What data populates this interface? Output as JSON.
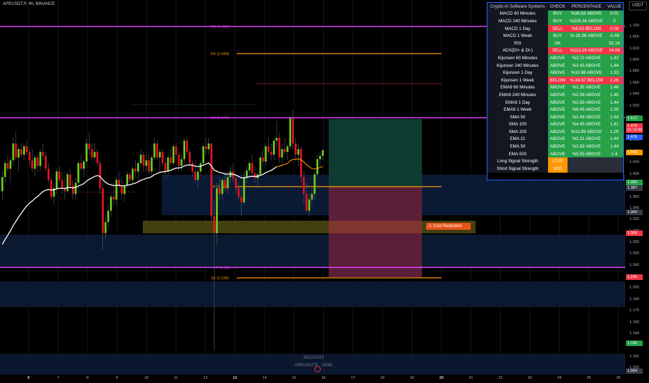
{
  "header": {
    "symbol": "APEUSDT.P, 4h, BINANCE",
    "currency": "USDT"
  },
  "price_axis": {
    "ticks": [
      "1.700",
      "1.660",
      "1.620",
      "1.600",
      "1.580",
      "1.560",
      "1.540",
      "1.520",
      "1.500",
      "1.480",
      "1.460",
      "1.440",
      "1.420",
      "1.400",
      "1.380",
      "1.360",
      "1.340",
      "1.320",
      "1.300",
      "1.280",
      "1.260",
      "1.240",
      "1.220",
      "1.205",
      "1.190",
      "1.175",
      "1.160",
      "1.144",
      "1.130",
      "1.116",
      "1.102"
    ],
    "labels": [
      {
        "text": "1.512",
        "color": "#26a049"
      },
      {
        "text": "1.478",
        "color": "#f23645"
      },
      {
        "text": "01:12:49",
        "color": "#f23645"
      },
      {
        "text": "1.476",
        "color": "#2962ff"
      },
      {
        "text": "1.448",
        "color": "#ff9800"
      },
      {
        "text": "1.393",
        "color": "#26a049"
      },
      {
        "text": "1.387",
        "color": "#363a45"
      },
      {
        "text": "1.340",
        "color": "#363a45"
      },
      {
        "text": "1.306",
        "color": "#f23645"
      },
      {
        "text": "1.235",
        "color": "#f23645"
      },
      {
        "text": "1.136",
        "color": "#26a049"
      },
      {
        "text": "1.094",
        "color": "#363a45"
      }
    ]
  },
  "time_axis": {
    "ticks": [
      {
        "label": "6",
        "bold": true
      },
      {
        "label": "7",
        "bold": false
      },
      {
        "label": "8",
        "bold": false
      },
      {
        "label": "9",
        "bold": false
      },
      {
        "label": "10",
        "bold": false
      },
      {
        "label": "11",
        "bold": false
      },
      {
        "label": "12",
        "bold": false
      },
      {
        "label": "13",
        "bold": true
      },
      {
        "label": "14",
        "bold": false
      },
      {
        "label": "15",
        "bold": false
      },
      {
        "label": "16",
        "bold": false
      },
      {
        "label": "17",
        "bold": false
      },
      {
        "label": "18",
        "bold": false
      },
      {
        "label": "19",
        "bold": false
      },
      {
        "label": "20",
        "bold": true
      },
      {
        "label": "21",
        "bold": false
      },
      {
        "label": "22",
        "bold": false
      },
      {
        "label": "23",
        "bold": false
      },
      {
        "label": "24",
        "bold": false
      },
      {
        "label": "25",
        "bold": false
      },
      {
        "label": "26",
        "bold": false
      }
    ]
  },
  "pivot_levels": [
    {
      "label": "R1 (1.639)",
      "color": "#ff9800"
    },
    {
      "label": "P (1.385)",
      "color": "#ff9800"
    },
    {
      "label": "S1 (1.234)",
      "color": "#ff9800"
    },
    {
      "label": "R1 (1.639)",
      "color": "#e040fb"
    },
    {
      "label": "S1 (1.521)",
      "color": "#e040fb"
    },
    {
      "label": "P (1.31)",
      "color": "#e040fb"
    }
  ],
  "cost_reduction_label": "Cost Reduction",
  "bottom_info": {
    "date": "16/11/2023",
    "symbol": "APEUSDT.P · 240M"
  },
  "panel": {
    "headers": [
      "Crypto AI Software Systems",
      "CHECK",
      "PERCENTAGE",
      "VALUE"
    ],
    "rows": [
      {
        "name": "MACD 60 Minutes",
        "check": "BUY",
        "pct": "%36.63 ABOVE",
        "value": "0.01",
        "color": "g"
      },
      {
        "name": "MACD 240 Minutes",
        "check": "BUY",
        "pct": "%226.36 ABOVE",
        "value": "0",
        "color": "g"
      },
      {
        "name": "MACD 1 Day",
        "check": "SELL",
        "pct": "%8.53 BELOW",
        "value": "0.08",
        "color": "r"
      },
      {
        "name": "MACD 1 Week",
        "check": "BUY",
        "pct": "%-26.98 ABOVE",
        "value": "-0.49",
        "color": "g"
      },
      {
        "name": "RSI",
        "check": "OK",
        "pct": "-",
        "value": "55.18",
        "color": "g"
      },
      {
        "name": "ADX(DI+ & DI-)",
        "check": "SELL",
        "pct": "%113.39 ABOVE",
        "value": "14.06",
        "color": "r"
      },
      {
        "name": "Kijunsen 60 Minutes",
        "check": "ABOVE",
        "pct": "%3.72 ABOVE",
        "value": "1.42",
        "color": "g"
      },
      {
        "name": "Kijunsen 240 Minutes",
        "check": "ABOVE",
        "pct": "%2.43 ABOVE",
        "value": "1.44",
        "color": "g"
      },
      {
        "name": "Kijunsen 1 Day",
        "check": "ABOVE",
        "pct": "%10.98 ABOVE",
        "value": "1.33",
        "color": "g"
      },
      {
        "name": "Kijunsen 1 Week",
        "check": "BELOW",
        "pct": "%-34.57 BELOW",
        "value": "2.26",
        "color": "r"
      },
      {
        "name": "EMA9 60 Minutes",
        "check": "ABOVE",
        "pct": "%1.35 ABOVE",
        "value": "1.46",
        "color": "g"
      },
      {
        "name": "EMA9 240 Minutes",
        "check": "ABOVE",
        "pct": "%2.08 ABOVE",
        "value": "1.45",
        "color": "g"
      },
      {
        "name": "EMA9 1 Day",
        "check": "ABOVE",
        "pct": "%2.65 ABOVE",
        "value": "1.44",
        "color": "g"
      },
      {
        "name": "EMA9 1 Week",
        "check": "ABOVE",
        "pct": "%6.45 ABOVE",
        "value": "1.39",
        "color": "g"
      },
      {
        "name": "SMA 50",
        "check": "ABOVE",
        "pct": "%2.49 ABOVE",
        "value": "1.44",
        "color": "g"
      },
      {
        "name": "SMA 100",
        "check": "ABOVE",
        "pct": "%4.45 ABOVE",
        "value": "1.41",
        "color": "g"
      },
      {
        "name": "SMA 200",
        "check": "ABOVE",
        "pct": "%13.99 ABOVE",
        "value": "1.29",
        "color": "g"
      },
      {
        "name": "EMA 21",
        "check": "ABOVE",
        "pct": "%2.31 ABOVE",
        "value": "1.44",
        "color": "g"
      },
      {
        "name": "EMA 50",
        "check": "ABOVE",
        "pct": "%2.83 ABOVE",
        "value": "1.44",
        "color": "g"
      },
      {
        "name": "EMA 500",
        "check": "ABOVE",
        "pct": "%5.55 ABOVE",
        "value": "1.4",
        "color": "g"
      }
    ],
    "signals": [
      {
        "name": "Long Signal Strength",
        "value": "17/20"
      },
      {
        "name": "Short Signal Strength",
        "value": "3/20"
      }
    ]
  },
  "candles": [
    {
      "t": 0,
      "o": 1.405,
      "h": 1.44,
      "l": 1.39,
      "c": 1.43
    },
    {
      "t": 1,
      "o": 1.43,
      "h": 1.46,
      "l": 1.42,
      "c": 1.455
    },
    {
      "t": 2,
      "o": 1.455,
      "h": 1.47,
      "l": 1.44,
      "c": 1.445
    },
    {
      "t": 3,
      "o": 1.445,
      "h": 1.465,
      "l": 1.42,
      "c": 1.46
    },
    {
      "t": 4,
      "o": 1.46,
      "h": 1.5,
      "l": 1.45,
      "c": 1.49
    },
    {
      "t": 5,
      "o": 1.49,
      "h": 1.51,
      "l": 1.46,
      "c": 1.465
    },
    {
      "t": 6,
      "o": 1.465,
      "h": 1.485,
      "l": 1.44,
      "c": 1.48
    },
    {
      "t": 7,
      "o": 1.48,
      "h": 1.49,
      "l": 1.465,
      "c": 1.47
    },
    {
      "t": 8,
      "o": 1.47,
      "h": 1.49,
      "l": 1.46,
      "c": 1.485
    },
    {
      "t": 9,
      "o": 1.485,
      "h": 1.495,
      "l": 1.47,
      "c": 1.475
    },
    {
      "t": 10,
      "o": 1.475,
      "h": 1.48,
      "l": 1.45,
      "c": 1.46
    },
    {
      "t": 11,
      "o": 1.46,
      "h": 1.48,
      "l": 1.44,
      "c": 1.445
    },
    {
      "t": 12,
      "o": 1.445,
      "h": 1.47,
      "l": 1.43,
      "c": 1.465
    },
    {
      "t": 13,
      "o": 1.465,
      "h": 1.47,
      "l": 1.44,
      "c": 1.45
    },
    {
      "t": 14,
      "o": 1.45,
      "h": 1.48,
      "l": 1.44,
      "c": 1.475
    },
    {
      "t": 15,
      "o": 1.475,
      "h": 1.49,
      "l": 1.46,
      "c": 1.468
    },
    {
      "t": 16,
      "o": 1.468,
      "h": 1.475,
      "l": 1.44,
      "c": 1.445
    },
    {
      "t": 17,
      "o": 1.445,
      "h": 1.455,
      "l": 1.42,
      "c": 1.425
    },
    {
      "t": 18,
      "o": 1.425,
      "h": 1.43,
      "l": 1.39,
      "c": 1.395
    },
    {
      "t": 19,
      "o": 1.395,
      "h": 1.42,
      "l": 1.38,
      "c": 1.41
    },
    {
      "t": 20,
      "o": 1.41,
      "h": 1.445,
      "l": 1.4,
      "c": 1.44
    },
    {
      "t": 21,
      "o": 1.44,
      "h": 1.45,
      "l": 1.42,
      "c": 1.425
    },
    {
      "t": 22,
      "o": 1.425,
      "h": 1.44,
      "l": 1.4,
      "c": 1.41
    },
    {
      "t": 23,
      "o": 1.41,
      "h": 1.43,
      "l": 1.39,
      "c": 1.405
    },
    {
      "t": 24,
      "o": 1.405,
      "h": 1.44,
      "l": 1.4,
      "c": 1.435
    },
    {
      "t": 25,
      "o": 1.435,
      "h": 1.445,
      "l": 1.41,
      "c": 1.415
    },
    {
      "t": 26,
      "o": 1.415,
      "h": 1.425,
      "l": 1.39,
      "c": 1.4
    },
    {
      "t": 27,
      "o": 1.4,
      "h": 1.43,
      "l": 1.39,
      "c": 1.42
    },
    {
      "t": 28,
      "o": 1.42,
      "h": 1.46,
      "l": 1.41,
      "c": 1.455
    },
    {
      "t": 29,
      "o": 1.455,
      "h": 1.47,
      "l": 1.44,
      "c": 1.445
    },
    {
      "t": 30,
      "o": 1.445,
      "h": 1.46,
      "l": 1.43,
      "c": 1.458
    },
    {
      "t": 31,
      "o": 1.458,
      "h": 1.5,
      "l": 1.45,
      "c": 1.49
    },
    {
      "t": 32,
      "o": 1.49,
      "h": 1.51,
      "l": 1.47,
      "c": 1.48
    },
    {
      "t": 33,
      "o": 1.48,
      "h": 1.49,
      "l": 1.46,
      "c": 1.465
    },
    {
      "t": 34,
      "o": 1.465,
      "h": 1.49,
      "l": 1.455,
      "c": 1.475
    },
    {
      "t": 35,
      "o": 1.475,
      "h": 1.48,
      "l": 1.45,
      "c": 1.455
    },
    {
      "t": 36,
      "o": 1.455,
      "h": 1.46,
      "l": 1.4,
      "c": 1.41
    },
    {
      "t": 37,
      "o": 1.41,
      "h": 1.42,
      "l": 1.3,
      "c": 1.33
    },
    {
      "t": 38,
      "o": 1.33,
      "h": 1.36,
      "l": 1.32,
      "c": 1.35
    },
    {
      "t": 39,
      "o": 1.35,
      "h": 1.38,
      "l": 1.34,
      "c": 1.37
    },
    {
      "t": 40,
      "o": 1.37,
      "h": 1.4,
      "l": 1.36,
      "c": 1.395
    },
    {
      "t": 41,
      "o": 1.395,
      "h": 1.42,
      "l": 1.38,
      "c": 1.39
    },
    {
      "t": 42,
      "o": 1.39,
      "h": 1.43,
      "l": 1.38,
      "c": 1.425
    },
    {
      "t": 43,
      "o": 1.425,
      "h": 1.44,
      "l": 1.41,
      "c": 1.415
    },
    {
      "t": 44,
      "o": 1.415,
      "h": 1.43,
      "l": 1.39,
      "c": 1.4
    },
    {
      "t": 45,
      "o": 1.4,
      "h": 1.42,
      "l": 1.385,
      "c": 1.415
    },
    {
      "t": 46,
      "o": 1.415,
      "h": 1.44,
      "l": 1.41,
      "c": 1.435
    },
    {
      "t": 47,
      "o": 1.435,
      "h": 1.44,
      "l": 1.42,
      "c": 1.425
    },
    {
      "t": 48,
      "o": 1.425,
      "h": 1.45,
      "l": 1.42,
      "c": 1.445
    },
    {
      "t": 49,
      "o": 1.445,
      "h": 1.46,
      "l": 1.43,
      "c": 1.44
    },
    {
      "t": 50,
      "o": 1.44,
      "h": 1.46,
      "l": 1.42,
      "c": 1.455
    },
    {
      "t": 51,
      "o": 1.455,
      "h": 1.48,
      "l": 1.45,
      "c": 1.47
    },
    {
      "t": 52,
      "o": 1.47,
      "h": 1.475,
      "l": 1.44,
      "c": 1.45
    },
    {
      "t": 53,
      "o": 1.45,
      "h": 1.47,
      "l": 1.44,
      "c": 1.46
    },
    {
      "t": 54,
      "o": 1.46,
      "h": 1.47,
      "l": 1.435,
      "c": 1.44
    },
    {
      "t": 55,
      "o": 1.44,
      "h": 1.47,
      "l": 1.43,
      "c": 1.465
    },
    {
      "t": 56,
      "o": 1.465,
      "h": 1.5,
      "l": 1.46,
      "c": 1.49
    },
    {
      "t": 57,
      "o": 1.49,
      "h": 1.495,
      "l": 1.46,
      "c": 1.465
    },
    {
      "t": 58,
      "o": 1.465,
      "h": 1.48,
      "l": 1.44,
      "c": 1.475
    },
    {
      "t": 59,
      "o": 1.475,
      "h": 1.48,
      "l": 1.45,
      "c": 1.455
    },
    {
      "t": 60,
      "o": 1.455,
      "h": 1.465,
      "l": 1.43,
      "c": 1.44
    },
    {
      "t": 61,
      "o": 1.44,
      "h": 1.47,
      "l": 1.43,
      "c": 1.465
    },
    {
      "t": 62,
      "o": 1.465,
      "h": 1.48,
      "l": 1.45,
      "c": 1.455
    },
    {
      "t": 63,
      "o": 1.455,
      "h": 1.49,
      "l": 1.45,
      "c": 1.485
    },
    {
      "t": 64,
      "o": 1.485,
      "h": 1.49,
      "l": 1.46,
      "c": 1.47
    },
    {
      "t": 65,
      "o": 1.47,
      "h": 1.475,
      "l": 1.44,
      "c": 1.45
    },
    {
      "t": 66,
      "o": 1.45,
      "h": 1.47,
      "l": 1.44,
      "c": 1.462
    },
    {
      "t": 67,
      "o": 1.462,
      "h": 1.5,
      "l": 1.455,
      "c": 1.495
    },
    {
      "t": 68,
      "o": 1.495,
      "h": 1.5,
      "l": 1.47,
      "c": 1.475
    },
    {
      "t": 69,
      "o": 1.475,
      "h": 1.48,
      "l": 1.45,
      "c": 1.455
    },
    {
      "t": 70,
      "o": 1.455,
      "h": 1.46,
      "l": 1.43,
      "c": 1.44
    },
    {
      "t": 71,
      "o": 1.44,
      "h": 1.46,
      "l": 1.42,
      "c": 1.425
    },
    {
      "t": 72,
      "o": 1.425,
      "h": 1.45,
      "l": 1.41,
      "c": 1.44
    },
    {
      "t": 73,
      "o": 1.44,
      "h": 1.46,
      "l": 1.43,
      "c": 1.455
    },
    {
      "t": 74,
      "o": 1.455,
      "h": 1.49,
      "l": 1.45,
      "c": 1.485
    },
    {
      "t": 75,
      "o": 1.485,
      "h": 1.5,
      "l": 1.47,
      "c": 1.48
    },
    {
      "t": 76,
      "o": 1.48,
      "h": 1.5,
      "l": 1.47,
      "c": 1.49
    },
    {
      "t": 77,
      "o": 1.49,
      "h": 1.49,
      "l": 1.35,
      "c": 1.36
    },
    {
      "t": 78,
      "o": 1.36,
      "h": 1.39,
      "l": 1.12,
      "c": 1.33
    },
    {
      "t": 79,
      "o": 1.33,
      "h": 1.42,
      "l": 1.31,
      "c": 1.41
    },
    {
      "t": 80,
      "o": 1.41,
      "h": 1.43,
      "l": 1.39,
      "c": 1.4
    },
    {
      "t": 81,
      "o": 1.4,
      "h": 1.43,
      "l": 1.39,
      "c": 1.425
    },
    {
      "t": 82,
      "o": 1.425,
      "h": 1.44,
      "l": 1.405,
      "c": 1.41
    },
    {
      "t": 83,
      "o": 1.41,
      "h": 1.44,
      "l": 1.4,
      "c": 1.43
    },
    {
      "t": 84,
      "o": 1.43,
      "h": 1.45,
      "l": 1.42,
      "c": 1.44
    },
    {
      "t": 85,
      "o": 1.44,
      "h": 1.455,
      "l": 1.42,
      "c": 1.428
    },
    {
      "t": 86,
      "o": 1.428,
      "h": 1.435,
      "l": 1.4,
      "c": 1.41
    },
    {
      "t": 87,
      "o": 1.41,
      "h": 1.42,
      "l": 1.39,
      "c": 1.395
    },
    {
      "t": 88,
      "o": 1.395,
      "h": 1.41,
      "l": 1.36,
      "c": 1.385
    },
    {
      "t": 89,
      "o": 1.385,
      "h": 1.44,
      "l": 1.38,
      "c": 1.43
    },
    {
      "t": 90,
      "o": 1.43,
      "h": 1.45,
      "l": 1.42,
      "c": 1.442
    },
    {
      "t": 91,
      "o": 1.442,
      "h": 1.46,
      "l": 1.43,
      "c": 1.455
    },
    {
      "t": 92,
      "o": 1.455,
      "h": 1.47,
      "l": 1.43,
      "c": 1.437
    },
    {
      "t": 93,
      "o": 1.437,
      "h": 1.45,
      "l": 1.42,
      "c": 1.428
    },
    {
      "t": 94,
      "o": 1.428,
      "h": 1.44,
      "l": 1.41,
      "c": 1.435
    },
    {
      "t": 95,
      "o": 1.435,
      "h": 1.47,
      "l": 1.43,
      "c": 1.465
    },
    {
      "t": 96,
      "o": 1.465,
      "h": 1.48,
      "l": 1.45,
      "c": 1.458
    },
    {
      "t": 97,
      "o": 1.458,
      "h": 1.49,
      "l": 1.45,
      "c": 1.485
    },
    {
      "t": 98,
      "o": 1.485,
      "h": 1.5,
      "l": 1.47,
      "c": 1.475
    },
    {
      "t": 99,
      "o": 1.475,
      "h": 1.49,
      "l": 1.46,
      "c": 1.47
    },
    {
      "t": 100,
      "o": 1.47,
      "h": 1.5,
      "l": 1.46,
      "c": 1.495
    },
    {
      "t": 101,
      "o": 1.495,
      "h": 1.53,
      "l": 1.48,
      "c": 1.5
    },
    {
      "t": 102,
      "o": 1.5,
      "h": 1.51,
      "l": 1.455,
      "c": 1.465
    },
    {
      "t": 103,
      "o": 1.465,
      "h": 1.49,
      "l": 1.45,
      "c": 1.48
    },
    {
      "t": 104,
      "o": 1.48,
      "h": 1.5,
      "l": 1.47,
      "c": 1.475
    },
    {
      "t": 105,
      "o": 1.475,
      "h": 1.49,
      "l": 1.46,
      "c": 1.485
    },
    {
      "t": 106,
      "o": 1.485,
      "h": 1.54,
      "l": 1.48,
      "c": 1.535
    },
    {
      "t": 107,
      "o": 1.535,
      "h": 1.55,
      "l": 1.48,
      "c": 1.49
    },
    {
      "t": 108,
      "o": 1.49,
      "h": 1.5,
      "l": 1.46,
      "c": 1.47
    },
    {
      "t": 109,
      "o": 1.47,
      "h": 1.49,
      "l": 1.45,
      "c": 1.48
    },
    {
      "t": 110,
      "o": 1.48,
      "h": 1.485,
      "l": 1.42,
      "c": 1.43
    },
    {
      "t": 111,
      "o": 1.43,
      "h": 1.44,
      "l": 1.38,
      "c": 1.4
    },
    {
      "t": 112,
      "o": 1.4,
      "h": 1.42,
      "l": 1.37,
      "c": 1.37
    },
    {
      "t": 113,
      "o": 1.37,
      "h": 1.4,
      "l": 1.36,
      "c": 1.39
    },
    {
      "t": 114,
      "o": 1.39,
      "h": 1.41,
      "l": 1.38,
      "c": 1.4
    },
    {
      "t": 115,
      "o": 1.4,
      "h": 1.44,
      "l": 1.39,
      "c": 1.435
    },
    {
      "t": 116,
      "o": 1.435,
      "h": 1.47,
      "l": 1.43,
      "c": 1.462
    },
    {
      "t": 117,
      "o": 1.462,
      "h": 1.475,
      "l": 1.45,
      "c": 1.468
    },
    {
      "t": 118,
      "o": 1.468,
      "h": 1.48,
      "l": 1.46,
      "c": 1.478
    }
  ]
}
